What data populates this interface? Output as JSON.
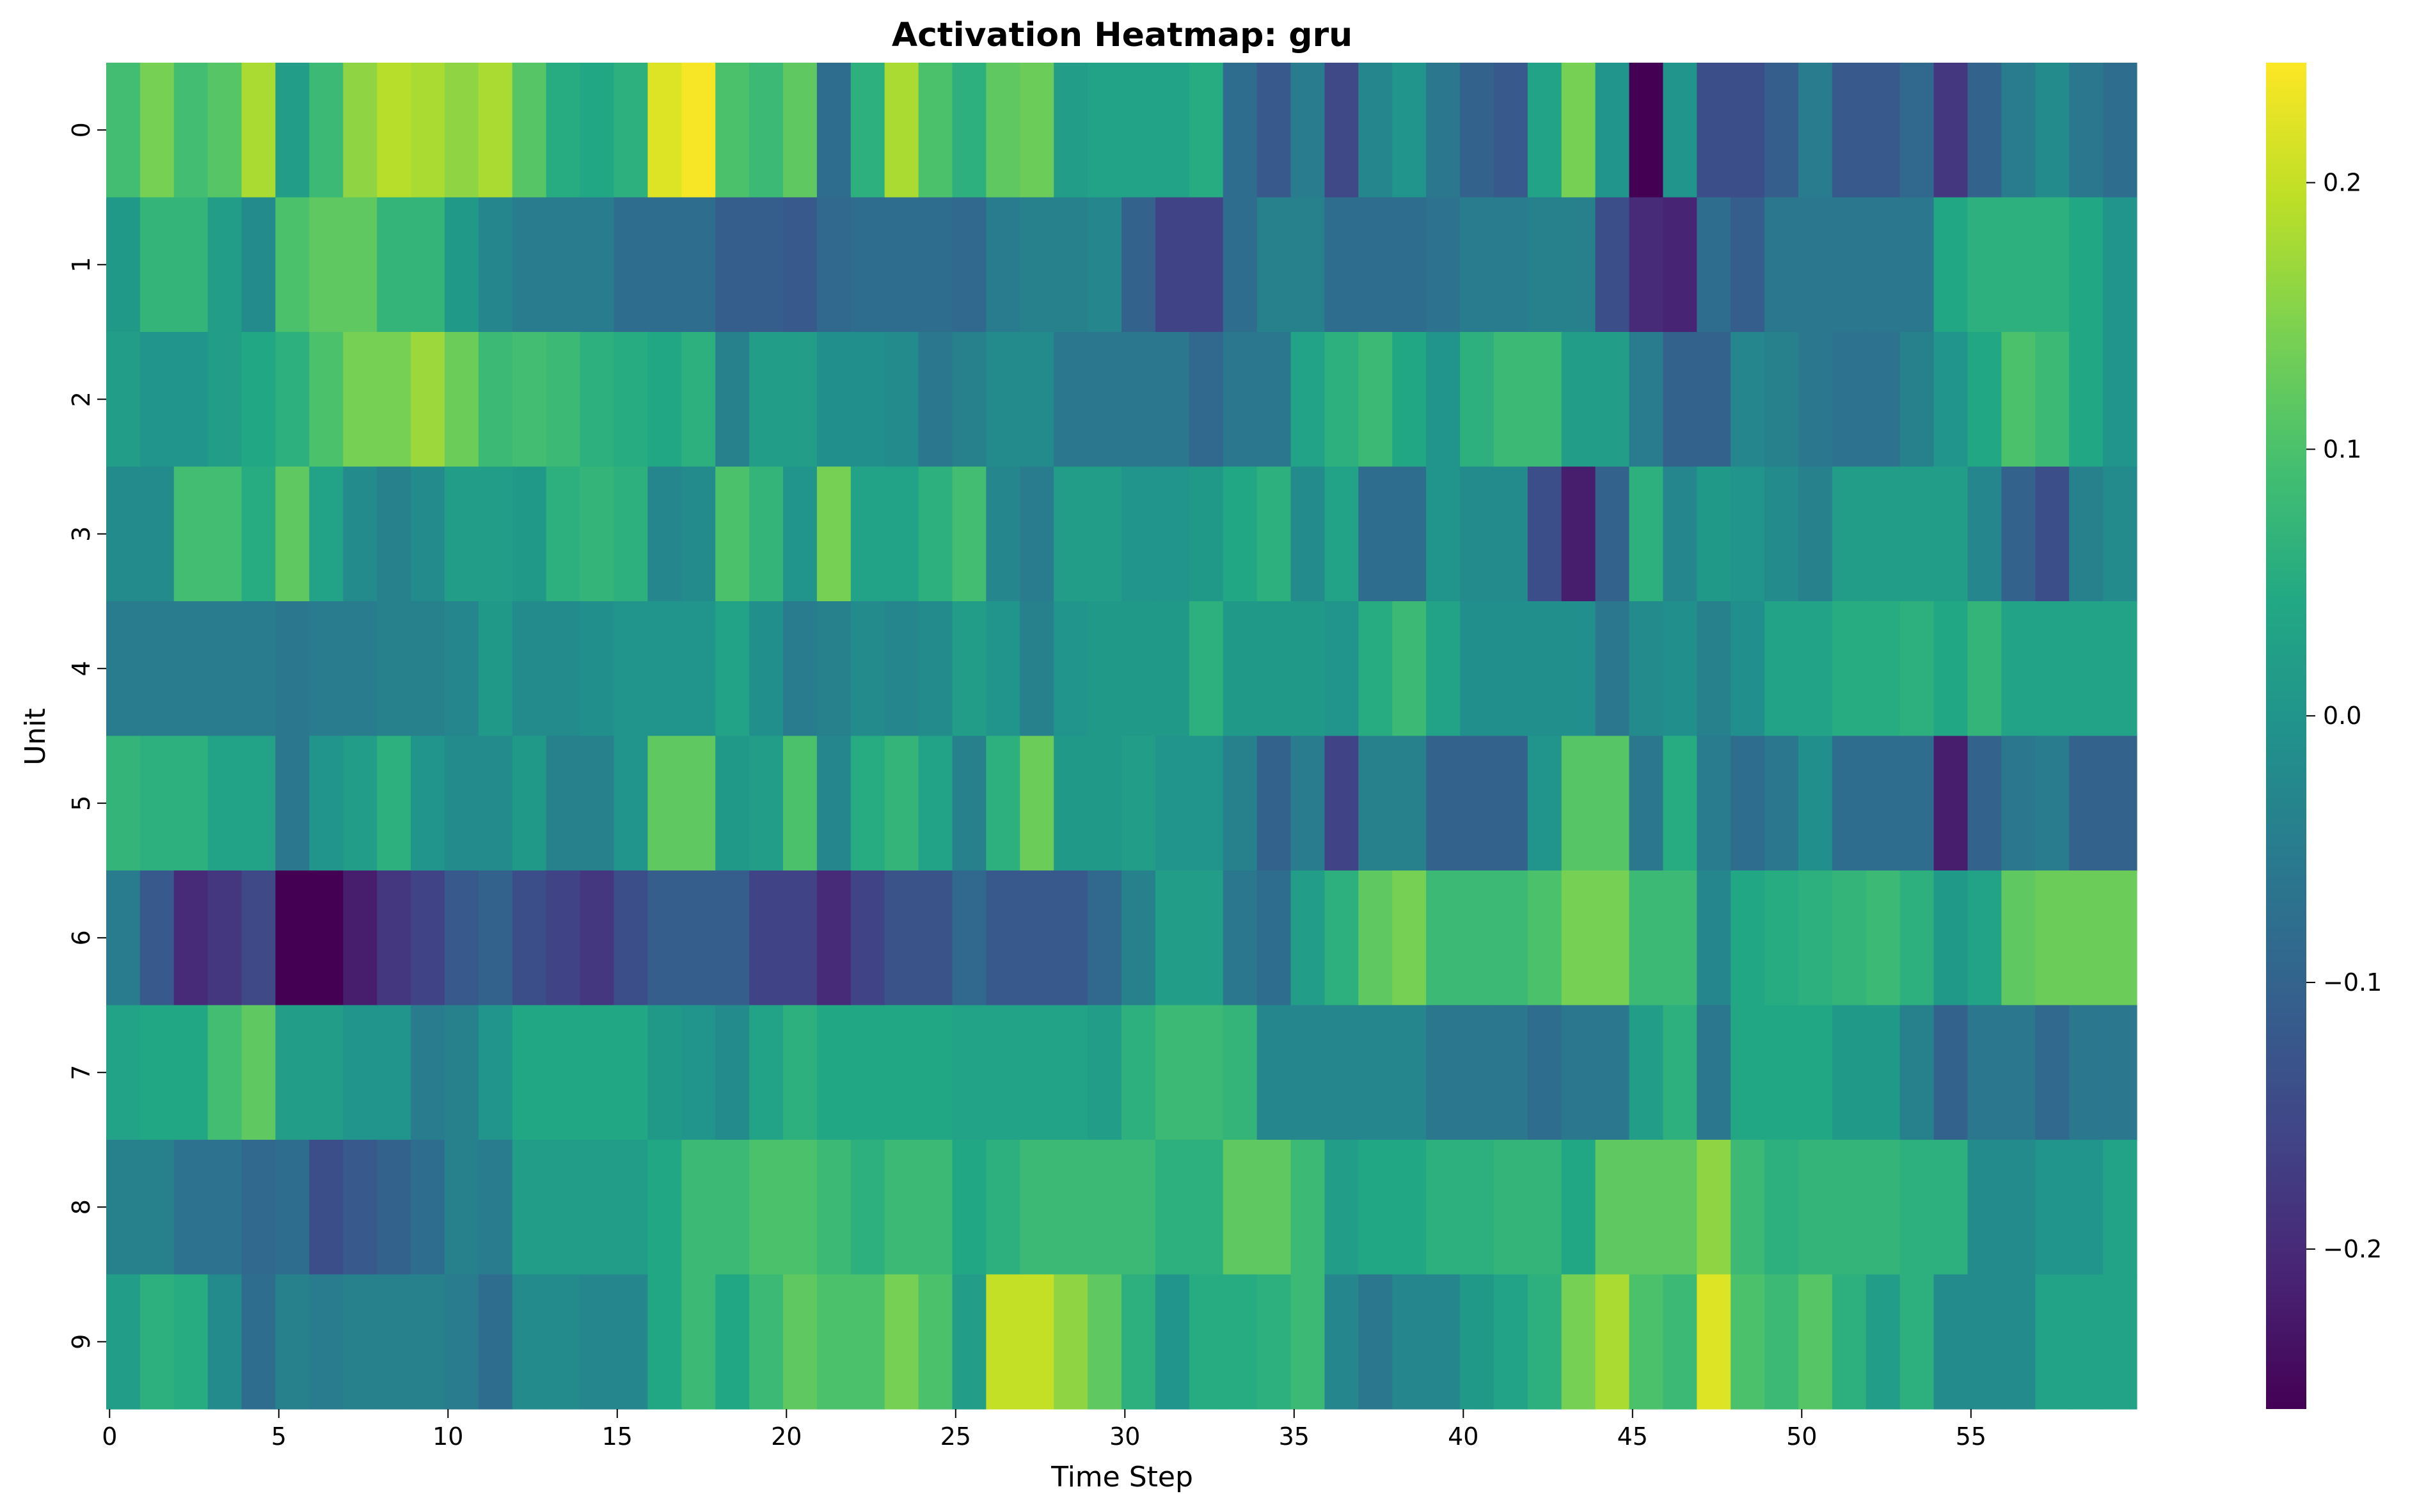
{
  "chart_data": {
    "type": "heatmap",
    "title": "Activation Heatmap: gru",
    "xlabel": "Time Step",
    "ylabel": "Unit",
    "colormap": "viridis",
    "x_ticks": [
      0,
      5,
      10,
      15,
      20,
      25,
      30,
      35,
      40,
      45,
      50,
      55
    ],
    "y_ticks": [
      0,
      1,
      2,
      3,
      4,
      5,
      6,
      7,
      8,
      9
    ],
    "colorbar": {
      "min": -0.26,
      "max": 0.245,
      "ticks": [
        0.2,
        0.1,
        0.0,
        -0.1,
        -0.2
      ],
      "tick_labels": [
        "0.2",
        "0.1",
        "0.0",
        "−0.1",
        "−0.2"
      ]
    },
    "values": [
      [
        0.09,
        0.14,
        0.09,
        0.11,
        0.18,
        0.02,
        0.08,
        0.16,
        0.19,
        0.18,
        0.16,
        0.18,
        0.11,
        0.05,
        0.04,
        0.06,
        0.22,
        0.24,
        0.1,
        0.08,
        0.12,
        -0.08,
        0.06,
        0.18,
        0.1,
        0.06,
        0.12,
        0.13,
        0.02,
        0.03,
        0.03,
        0.03,
        0.05,
        -0.08,
        -0.12,
        -0.05,
        -0.15,
        -0.03,
        0.0,
        -0.06,
        -0.1,
        -0.12,
        0.03,
        0.14,
        0.0,
        -0.26,
        0.0,
        -0.14,
        -0.14,
        -0.11,
        -0.05,
        -0.12,
        -0.12,
        -0.09,
        -0.18,
        -0.1,
        -0.05,
        -0.02,
        -0.06,
        -0.08
      ],
      [
        0.01,
        0.07,
        0.07,
        0.02,
        -0.02,
        0.1,
        0.12,
        0.12,
        0.07,
        0.07,
        0.01,
        -0.03,
        -0.05,
        -0.05,
        -0.05,
        -0.08,
        -0.08,
        -0.08,
        -0.11,
        -0.11,
        -0.12,
        -0.09,
        -0.08,
        -0.08,
        -0.08,
        -0.09,
        -0.05,
        -0.04,
        -0.04,
        -0.03,
        -0.1,
        -0.16,
        -0.16,
        -0.08,
        -0.04,
        -0.04,
        -0.08,
        -0.08,
        -0.08,
        -0.07,
        -0.05,
        -0.05,
        -0.04,
        -0.04,
        -0.14,
        -0.2,
        -0.21,
        -0.08,
        -0.11,
        -0.06,
        -0.06,
        -0.06,
        -0.06,
        -0.06,
        0.04,
        0.06,
        0.06,
        0.06,
        0.04,
        0.0
      ],
      [
        0.02,
        0.0,
        0.0,
        0.02,
        0.04,
        0.06,
        0.1,
        0.14,
        0.14,
        0.17,
        0.13,
        0.08,
        0.09,
        0.08,
        0.06,
        0.05,
        0.04,
        0.06,
        -0.04,
        0.02,
        0.02,
        -0.01,
        -0.01,
        -0.02,
        -0.06,
        -0.04,
        -0.02,
        -0.02,
        -0.06,
        -0.06,
        -0.06,
        -0.06,
        -0.09,
        -0.06,
        -0.06,
        0.03,
        0.06,
        0.08,
        0.04,
        0.0,
        0.06,
        0.08,
        0.08,
        0.02,
        0.02,
        -0.05,
        -0.1,
        -0.1,
        -0.03,
        -0.04,
        -0.06,
        -0.07,
        -0.07,
        -0.04,
        0.0,
        0.04,
        0.1,
        0.08,
        0.04,
        0.0
      ],
      [
        -0.02,
        -0.02,
        0.09,
        0.09,
        0.05,
        0.12,
        0.03,
        -0.02,
        -0.04,
        -0.02,
        0.02,
        0.02,
        0.01,
        0.06,
        0.07,
        0.06,
        -0.03,
        -0.02,
        0.1,
        0.07,
        0.0,
        0.14,
        0.03,
        0.03,
        0.06,
        0.09,
        -0.03,
        -0.05,
        0.02,
        0.02,
        0.0,
        0.0,
        0.01,
        0.04,
        0.06,
        -0.02,
        0.03,
        -0.08,
        -0.08,
        0.0,
        -0.02,
        -0.02,
        -0.14,
        -0.22,
        -0.1,
        0.06,
        -0.03,
        0.01,
        0.0,
        -0.02,
        -0.04,
        0.02,
        0.02,
        0.02,
        0.02,
        -0.03,
        -0.1,
        -0.14,
        -0.04,
        -0.02
      ],
      [
        -0.05,
        -0.05,
        -0.05,
        -0.05,
        -0.05,
        -0.06,
        -0.05,
        -0.05,
        -0.04,
        -0.04,
        -0.03,
        0.01,
        -0.02,
        -0.02,
        -0.01,
        0.0,
        0.0,
        0.0,
        0.03,
        -0.01,
        -0.05,
        -0.04,
        -0.02,
        -0.03,
        -0.02,
        0.02,
        0.0,
        -0.04,
        0.0,
        0.01,
        0.01,
        0.01,
        0.06,
        0.01,
        0.01,
        0.01,
        0.0,
        0.05,
        0.08,
        0.03,
        -0.01,
        -0.01,
        -0.01,
        -0.01,
        -0.06,
        -0.02,
        -0.01,
        -0.04,
        -0.01,
        0.03,
        0.03,
        0.05,
        0.05,
        0.06,
        0.04,
        0.07,
        0.03,
        0.03,
        0.03,
        0.03
      ],
      [
        0.07,
        0.06,
        0.06,
        0.03,
        0.03,
        -0.06,
        0.0,
        0.02,
        0.06,
        0.0,
        -0.02,
        -0.02,
        0.01,
        -0.04,
        -0.04,
        0.0,
        0.12,
        0.12,
        0.01,
        0.02,
        0.1,
        -0.03,
        0.05,
        0.07,
        0.03,
        -0.04,
        0.06,
        0.13,
        0.01,
        0.01,
        0.02,
        0.0,
        0.0,
        -0.04,
        -0.1,
        -0.05,
        -0.16,
        -0.04,
        -0.04,
        -0.1,
        -0.1,
        -0.1,
        0.0,
        0.11,
        0.11,
        -0.06,
        0.05,
        -0.05,
        -0.08,
        -0.06,
        -0.01,
        -0.08,
        -0.08,
        -0.08,
        -0.22,
        -0.1,
        -0.06,
        -0.05,
        -0.1,
        -0.1
      ],
      [
        -0.05,
        -0.12,
        -0.2,
        -0.18,
        -0.15,
        -0.26,
        -0.26,
        -0.22,
        -0.18,
        -0.16,
        -0.12,
        -0.1,
        -0.14,
        -0.16,
        -0.18,
        -0.14,
        -0.11,
        -0.11,
        -0.11,
        -0.16,
        -0.16,
        -0.2,
        -0.16,
        -0.13,
        -0.13,
        -0.09,
        -0.12,
        -0.12,
        -0.12,
        -0.09,
        -0.04,
        0.02,
        0.02,
        -0.06,
        -0.08,
        0.02,
        0.06,
        0.12,
        0.14,
        0.08,
        0.08,
        0.08,
        0.1,
        0.14,
        0.14,
        0.08,
        0.08,
        -0.03,
        0.04,
        0.05,
        0.06,
        0.07,
        0.08,
        0.06,
        0.01,
        0.03,
        0.12,
        0.13,
        0.13,
        0.13
      ],
      [
        0.03,
        0.04,
        0.04,
        0.09,
        0.12,
        0.02,
        0.02,
        0.0,
        0.0,
        -0.05,
        -0.04,
        0.0,
        0.04,
        0.04,
        0.04,
        0.04,
        0.01,
        0.0,
        -0.02,
        0.03,
        0.06,
        0.04,
        0.04,
        0.04,
        0.04,
        0.03,
        0.03,
        0.03,
        0.03,
        0.02,
        0.06,
        0.08,
        0.08,
        0.07,
        -0.03,
        -0.03,
        -0.03,
        -0.03,
        -0.03,
        -0.06,
        -0.06,
        -0.06,
        -0.08,
        -0.06,
        -0.06,
        0.02,
        0.06,
        -0.06,
        0.04,
        0.04,
        0.04,
        0.01,
        0.01,
        -0.04,
        -0.1,
        -0.06,
        -0.06,
        -0.09,
        -0.06,
        -0.06
      ],
      [
        -0.04,
        -0.04,
        -0.07,
        -0.07,
        -0.09,
        -0.08,
        -0.14,
        -0.12,
        -0.1,
        -0.08,
        -0.04,
        -0.05,
        0.02,
        0.02,
        0.02,
        0.02,
        0.04,
        0.08,
        0.08,
        0.1,
        0.1,
        0.08,
        0.06,
        0.08,
        0.08,
        0.04,
        0.06,
        0.08,
        0.08,
        0.08,
        0.08,
        0.06,
        0.06,
        0.12,
        0.12,
        0.08,
        0.02,
        0.04,
        0.04,
        0.06,
        0.06,
        0.07,
        0.07,
        0.04,
        0.12,
        0.12,
        0.12,
        0.16,
        0.08,
        0.06,
        0.07,
        0.07,
        0.07,
        0.06,
        0.06,
        -0.02,
        -0.02,
        0.0,
        0.0,
        0.03
      ],
      [
        0.02,
        0.06,
        0.05,
        -0.02,
        -0.08,
        -0.04,
        -0.05,
        -0.04,
        -0.04,
        -0.04,
        -0.05,
        -0.08,
        -0.02,
        -0.02,
        -0.03,
        -0.03,
        0.04,
        0.08,
        0.04,
        0.08,
        0.12,
        0.1,
        0.1,
        0.14,
        0.1,
        0.02,
        0.2,
        0.2,
        0.16,
        0.12,
        0.06,
        0.0,
        0.05,
        0.05,
        0.06,
        0.08,
        -0.03,
        -0.06,
        -0.03,
        -0.03,
        0.01,
        0.03,
        0.06,
        0.14,
        0.18,
        0.1,
        0.08,
        0.22,
        0.1,
        0.08,
        0.11,
        0.06,
        0.02,
        0.06,
        -0.02,
        -0.02,
        -0.02,
        0.03,
        0.03,
        0.03
      ]
    ]
  }
}
